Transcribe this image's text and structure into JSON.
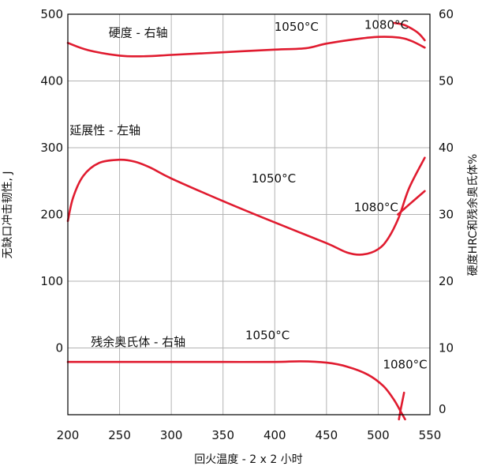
{
  "chart_data": {
    "type": "line",
    "title": "",
    "xlabel": "回火温度 - 2 x 2 小时",
    "ylabel_left": "无缺口冲击韧性, J",
    "ylabel_right": "硬度HRC和残余奥氏体%",
    "xlim": [
      200,
      550
    ],
    "ylim_left": [
      -100,
      500
    ],
    "ylim_right": [
      0,
      60
    ],
    "x_ticks": [
      200,
      250,
      300,
      350,
      400,
      450,
      500,
      550
    ],
    "y_left_ticks": [
      0,
      100,
      200,
      300,
      400,
      500
    ],
    "y_right_ticks": [
      0,
      10,
      20,
      30,
      40,
      50,
      60
    ],
    "grid": true,
    "annotations": [
      {
        "text": "硬度 - 右轴",
        "x": 268,
        "y": 466
      },
      {
        "text": "1050°C",
        "x": 421,
        "y": 475
      },
      {
        "text": "1080°C",
        "x": 508,
        "y": 478
      },
      {
        "text": "延展性 - 左轴",
        "x": 236,
        "y": 320
      },
      {
        "text": "1050°C",
        "x": 399,
        "y": 248
      },
      {
        "text": "1080°C",
        "x": 498,
        "y": 205
      },
      {
        "text": "残余奥氏体 - 右轴",
        "x": 268,
        "y": 3
      },
      {
        "text": "1050°C",
        "x": 393,
        "y": 13
      },
      {
        "text": "1080°C",
        "x": 526,
        "y": -31
      }
    ],
    "series": [
      {
        "axis": "right",
        "color": "#e01b2f",
        "x": [
          200,
          220,
          250,
          275,
          300,
          350,
          400,
          430,
          450,
          480,
          500,
          520,
          532,
          545
        ],
        "y": [
          55.7,
          54.6,
          53.8,
          53.7,
          53.9,
          54.3,
          54.7,
          54.9,
          55.6,
          56.3,
          56.6,
          56.5,
          56,
          55.0
        ]
      },
      {
        "axis": "right",
        "color": "#e01b2f",
        "x": [
          515,
          525,
          535,
          540,
          545
        ],
        "y": [
          58.7,
          58.4,
          57.6,
          57.0,
          56.1
        ]
      },
      {
        "axis": "left",
        "color": "#e01b2f",
        "x": [
          200,
          205,
          215,
          230,
          250,
          265,
          280,
          300,
          350,
          400,
          450,
          470,
          485,
          500,
          510,
          520,
          530,
          545
        ],
        "y": [
          190,
          225,
          258,
          277,
          282,
          279,
          270,
          254,
          220,
          188,
          157,
          143,
          140,
          148,
          165,
          196,
          240,
          285
        ]
      },
      {
        "axis": "left",
        "color": "#e01b2f",
        "x": [
          519,
          530,
          545
        ],
        "y": [
          200,
          215,
          235
        ]
      },
      {
        "axis": "right",
        "color": "#e01b2f",
        "x": [
          200,
          250,
          300,
          350,
          400,
          425,
          450,
          470,
          490,
          505,
          515,
          522,
          526
        ],
        "y": [
          7.9,
          7.9,
          7.9,
          7.9,
          7.9,
          8.0,
          7.8,
          7.2,
          6.0,
          4.3,
          2.3,
          0.4,
          -0.7
        ]
      },
      {
        "axis": "right",
        "color": "#e01b2f",
        "x": [
          525,
          522,
          520
        ],
        "y": [
          3.3,
          1.0,
          -0.7
        ]
      }
    ]
  }
}
